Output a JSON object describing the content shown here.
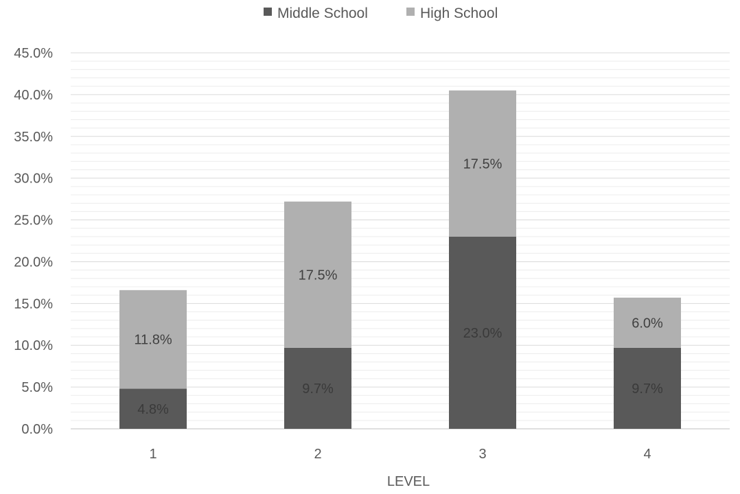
{
  "chart_data": {
    "type": "bar",
    "stacked": true,
    "categories": [
      "1",
      "2",
      "3",
      "4"
    ],
    "series": [
      {
        "name": "Middle School",
        "values": [
          4.8,
          9.7,
          23.0,
          9.7
        ],
        "labels": [
          "4.8%",
          "9.7%",
          "23.0%",
          "9.7%"
        ],
        "color": "#595959"
      },
      {
        "name": "High School",
        "values": [
          11.8,
          17.5,
          17.5,
          6.0
        ],
        "labels": [
          "11.8%",
          "17.5%",
          "17.5%",
          "6.0%"
        ],
        "color": "#b0b0b0"
      }
    ],
    "xlabel": "LEVEL",
    "ylabel": "",
    "ylim": [
      0,
      45
    ],
    "y_ticks": [
      {
        "value": 0,
        "label": "0.0%"
      },
      {
        "value": 5,
        "label": "5.0%"
      },
      {
        "value": 10,
        "label": "10.0%"
      },
      {
        "value": 15,
        "label": "15.0%"
      },
      {
        "value": 20,
        "label": "20.0%"
      },
      {
        "value": 25,
        "label": "25.0%"
      },
      {
        "value": 30,
        "label": "30.0%"
      },
      {
        "value": 35,
        "label": "35.0%"
      },
      {
        "value": 40,
        "label": "40.0%"
      },
      {
        "value": 45,
        "label": "45.0%"
      }
    ],
    "minor_gridline_step": 1,
    "grid": true,
    "legend_position": "top-center"
  },
  "colors": {
    "gridline": "#d9d9d9",
    "minor_gridline": "#ececec",
    "axis_text": "#595959",
    "label_on_light": "#404040",
    "label_on_dark": "#3a3a3a"
  }
}
